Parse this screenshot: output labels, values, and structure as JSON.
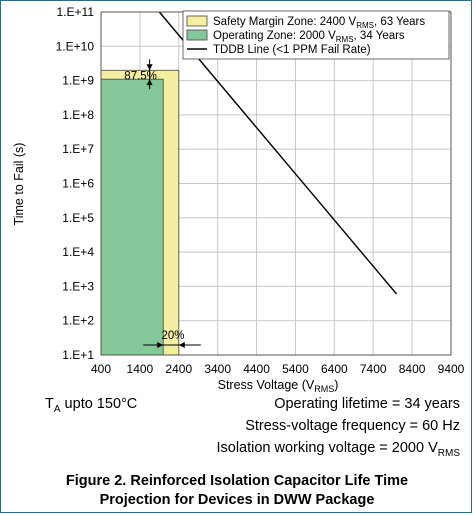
{
  "chart_data": {
    "type": "area",
    "ylabel": "Time to Fail (s)",
    "xlabel": "Stress Voltage (V",
    "xlabel_sub": "RMS",
    "xlabel_end": ")",
    "x_ticks": [
      400,
      1400,
      2400,
      3400,
      4400,
      5400,
      6400,
      7400,
      8400,
      9400
    ],
    "y_ticks": [
      "1.E+1",
      "1.E+2",
      "1.E+3",
      "1.E+4",
      "1.E+5",
      "1.E+6",
      "1.E+7",
      "1.E+8",
      "1.E+9",
      "1.E+10",
      "1.E+11"
    ],
    "xlim": [
      400,
      9400
    ],
    "ylim_exp": [
      1,
      11
    ],
    "y_scale": "log",
    "grid": true,
    "legend_position": "top-right",
    "series": [
      {
        "name": "Safety Margin Zone: 2400 V",
        "name_sub": "RMS",
        "name_end": ", 63 Years",
        "kind": "zone",
        "color": "#f4efa0",
        "x": [
          400,
          2400
        ],
        "y": [
          10,
          2000000000.0
        ]
      },
      {
        "name": "Operating Zone: 2000 V",
        "name_sub": "RMS",
        "name_end": ", 34 Years",
        "kind": "zone",
        "color": "#84c89a",
        "x": [
          400,
          2000
        ],
        "y": [
          10,
          1100000000.0
        ]
      },
      {
        "name": "TDDB Line (<1 PPM Fail Rate)",
        "kind": "line",
        "color": "#000000",
        "x": [
          1900,
          8000
        ],
        "y": [
          100000000000.0,
          600
        ]
      }
    ],
    "annotations": [
      {
        "text": "87.5%",
        "x": 1650,
        "y": 1100000000.0
      },
      {
        "text": "20%",
        "x": 2200,
        "y": 10
      }
    ]
  },
  "notes": {
    "ta_label": "T",
    "ta_sub": "A",
    "ta_rest": " upto 150°C",
    "lifetime": "Operating lifetime = 34 years",
    "frequency": "Stress-voltage frequency = 60 Hz",
    "isolation": "Isolation working voltage = 2000 V",
    "isolation_sub": "RMS"
  },
  "caption": {
    "line1": "Figure 2. Reinforced Isolation Capacitor Life Time",
    "line2": "Projection for Devices in DWW Package"
  }
}
